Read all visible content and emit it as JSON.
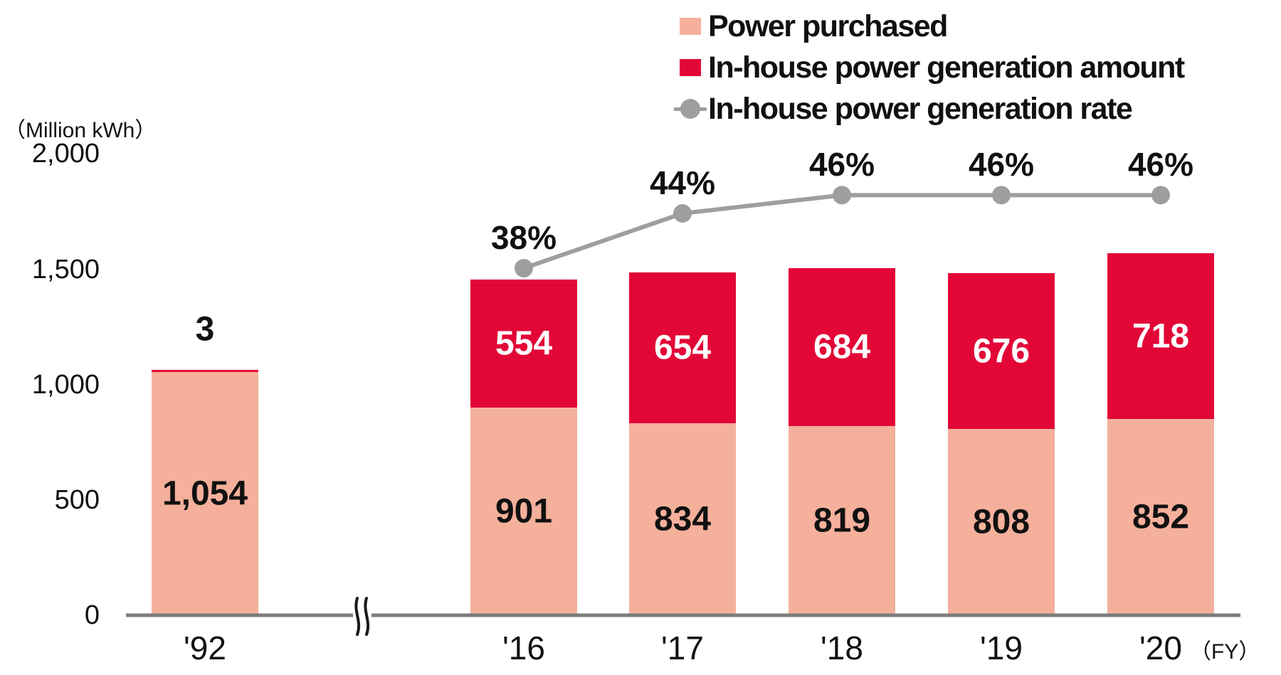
{
  "legend": {
    "items": [
      {
        "label": "Power purchased",
        "marker": "square",
        "color": "#F4B09B"
      },
      {
        "label": "In-house power generation amount",
        "marker": "square",
        "color": "#E20737"
      },
      {
        "label": "In-house power generation rate",
        "marker": "dot-line",
        "color": "#9E9E9E"
      }
    ]
  },
  "axes": {
    "y_unit": "（Million kWh）",
    "x_suffix": "（FY）"
  },
  "chart_data": {
    "type": "bar",
    "subtype": "stacked-bars-with-rate-line",
    "title": "",
    "categories": [
      "'92",
      "'16",
      "'17",
      "'18",
      "'19",
      "'20"
    ],
    "series": [
      {
        "name": "Power purchased",
        "type": "bar",
        "color": "#F4B09B",
        "values": [
          1054,
          901,
          834,
          819,
          808,
          852
        ]
      },
      {
        "name": "In-house power generation amount",
        "type": "bar",
        "color": "#E20737",
        "values": [
          3,
          554,
          654,
          684,
          676,
          718
        ]
      },
      {
        "name": "In-house power generation rate",
        "type": "line",
        "color": "#9E9E9E",
        "unit": "%",
        "values": [
          null,
          38,
          44,
          46,
          46,
          46
        ]
      }
    ],
    "ylabel": "（Million kWh）",
    "ylim": [
      0,
      2000
    ],
    "yticks": [
      0,
      500,
      1000,
      1500,
      2000
    ],
    "grid": false,
    "legend_position": "top-right",
    "axis_break_between": [
      "'92",
      "'16"
    ],
    "value_label_colors": {
      "purchased": "#111111",
      "generation_in_bar": "#ffffff",
      "generation_above_bar": "#111111"
    }
  },
  "colors": {
    "salmon": "#F4B09B",
    "red": "#E20737",
    "line_gray": "#9E9E9E",
    "axis_gray": "#7C7C7C",
    "text": "#111111",
    "background": "#ffffff"
  }
}
